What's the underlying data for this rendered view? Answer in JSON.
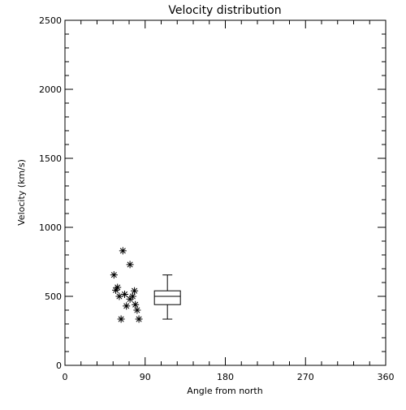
{
  "chart_data": {
    "type": "scatter",
    "title": "Velocity distribution",
    "xlabel": "Angle from north",
    "ylabel": "Velocity (km/s)",
    "xlim": [
      0,
      360
    ],
    "ylim": [
      0,
      2500
    ],
    "x_ticks": [
      0,
      90,
      180,
      270,
      360
    ],
    "x_tick_labels": [
      "0",
      "90",
      "180",
      "270",
      "360"
    ],
    "y_ticks": [
      0,
      500,
      1000,
      1500,
      2000,
      2500
    ],
    "y_tick_labels": [
      "0",
      "500",
      "1000",
      "1500",
      "2000",
      "2500"
    ],
    "grid": false,
    "marker": "asterisk",
    "points": [
      {
        "x": 55,
        "y": 655
      },
      {
        "x": 57,
        "y": 545
      },
      {
        "x": 59,
        "y": 565
      },
      {
        "x": 61,
        "y": 500
      },
      {
        "x": 63,
        "y": 335
      },
      {
        "x": 65,
        "y": 830
      },
      {
        "x": 67,
        "y": 515
      },
      {
        "x": 69,
        "y": 430
      },
      {
        "x": 73,
        "y": 730
      },
      {
        "x": 73,
        "y": 480
      },
      {
        "x": 76,
        "y": 500
      },
      {
        "x": 78,
        "y": 540
      },
      {
        "x": 79,
        "y": 440
      },
      {
        "x": 81,
        "y": 400
      },
      {
        "x": 83,
        "y": 335
      }
    ],
    "boxplot": {
      "x": 115,
      "whisker_low": 335,
      "q1": 440,
      "median": 500,
      "q3": 540,
      "whisker_high": 655
    },
    "colors": {
      "foreground": "#000000",
      "background": "#ffffff"
    }
  }
}
